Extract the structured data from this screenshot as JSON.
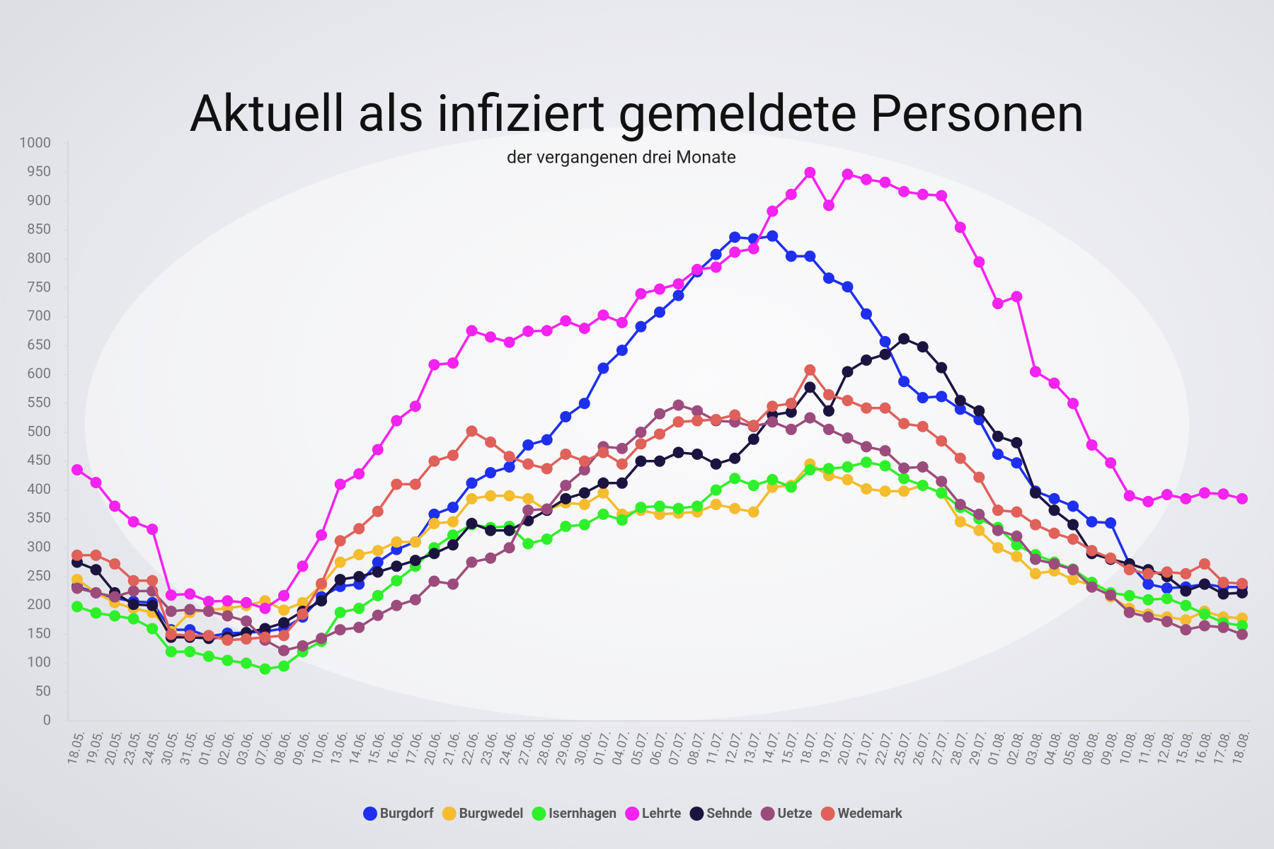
{
  "chart_data": {
    "type": "line",
    "title": "Aktuell als infiziert gemeldete Personen",
    "subtitle": "der vergangenen drei Monate",
    "categories": [
      "18.05.",
      "19.05.",
      "20.05.",
      "23.05.",
      "24.05.",
      "30.05.",
      "31.05.",
      "01.06.",
      "02.06.",
      "03.06.",
      "07.06.",
      "08.06.",
      "09.06.",
      "10.06.",
      "13.06.",
      "14.06.",
      "15.06.",
      "16.06.",
      "17.06.",
      "20.06.",
      "21.06.",
      "22.06.",
      "23.06.",
      "24.06.",
      "27.06.",
      "28.06.",
      "29.06.",
      "30.06.",
      "01.07.",
      "04.07.",
      "05.07.",
      "06.07.",
      "07.07.",
      "08.07.",
      "11.07.",
      "12.07.",
      "13.07.",
      "14.07.",
      "15.07.",
      "18.07.",
      "19.07.",
      "20.07.",
      "21.07.",
      "22.07.",
      "25.07.",
      "26.07.",
      "27.07.",
      "28.07.",
      "29.07.",
      "01.08.",
      "02.08.",
      "03.08.",
      "04.08.",
      "05.08.",
      "08.08.",
      "09.08.",
      "10.08.",
      "11.08.",
      "12.08.",
      "15.08.",
      "16.08.",
      "17.08.",
      "18.08."
    ],
    "series": [
      {
        "name": "Burgdorf",
        "color": "#1f2ff0",
        "values": [
          233,
          222,
          213,
          207,
          205,
          158,
          158,
          146,
          152,
          153,
          155,
          160,
          180,
          215,
          233,
          237,
          275,
          297,
          310,
          358,
          370,
          412,
          430,
          440,
          478,
          487,
          527,
          550,
          611,
          642,
          683,
          708,
          737,
          778,
          808,
          838,
          835,
          840,
          805,
          805,
          767,
          752,
          705,
          657,
          588,
          560,
          562,
          540,
          522,
          462,
          447,
          398,
          385,
          372,
          345,
          343,
          272,
          237,
          230,
          232,
          237,
          232,
          232
        ]
      },
      {
        "name": "Burgwedel",
        "color": "#f4bc2e",
        "values": [
          245,
          222,
          205,
          195,
          188,
          155,
          188,
          192,
          195,
          200,
          208,
          192,
          205,
          235,
          275,
          288,
          295,
          310,
          310,
          342,
          345,
          385,
          390,
          390,
          385,
          365,
          378,
          375,
          395,
          358,
          365,
          358,
          360,
          362,
          375,
          368,
          362,
          405,
          408,
          445,
          425,
          418,
          402,
          398,
          398,
          408,
          395,
          345,
          330,
          300,
          285,
          255,
          260,
          245,
          235,
          215,
          195,
          185,
          180,
          175,
          190,
          180,
          178
        ]
      },
      {
        "name": "Isernhagen",
        "color": "#2ef02a",
        "values": [
          198,
          187,
          182,
          177,
          160,
          120,
          120,
          112,
          105,
          100,
          90,
          95,
          120,
          138,
          188,
          195,
          217,
          243,
          268,
          300,
          322,
          340,
          335,
          337,
          307,
          315,
          337,
          340,
          358,
          348,
          370,
          372,
          368,
          372,
          400,
          420,
          408,
          418,
          405,
          435,
          437,
          440,
          448,
          442,
          420,
          408,
          395,
          370,
          350,
          335,
          305,
          288,
          275,
          263,
          240,
          222,
          217,
          210,
          212,
          200,
          185,
          170,
          165
        ]
      },
      {
        "name": "Lehrte",
        "color": "#f522f0",
        "values": [
          435,
          413,
          372,
          345,
          332,
          218,
          220,
          207,
          208,
          205,
          195,
          217,
          268,
          322,
          410,
          428,
          470,
          520,
          545,
          617,
          620,
          676,
          665,
          656,
          675,
          676,
          693,
          680,
          703,
          690,
          740,
          748,
          757,
          782,
          786,
          812,
          818,
          883,
          912,
          950,
          893,
          947,
          938,
          933,
          917,
          912,
          910,
          855,
          795,
          723,
          735,
          605,
          585,
          550,
          478,
          447,
          390,
          380,
          392,
          385,
          395,
          393,
          385
        ]
      },
      {
        "name": "Sehnde",
        "color": "#1c1440",
        "values": [
          275,
          262,
          222,
          202,
          200,
          145,
          145,
          143,
          145,
          153,
          160,
          170,
          190,
          208,
          245,
          250,
          258,
          268,
          278,
          290,
          305,
          342,
          330,
          330,
          347,
          365,
          385,
          395,
          412,
          412,
          450,
          450,
          465,
          462,
          445,
          455,
          488,
          530,
          535,
          578,
          537,
          605,
          625,
          635,
          662,
          648,
          612,
          555,
          537,
          493,
          482,
          395,
          365,
          340,
          290,
          280,
          272,
          262,
          250,
          225,
          237,
          220,
          222
        ]
      },
      {
        "name": "Uetze",
        "color": "#9c4c7c",
        "values": [
          230,
          222,
          215,
          225,
          225,
          190,
          193,
          190,
          182,
          173,
          140,
          122,
          130,
          143,
          158,
          162,
          183,
          200,
          210,
          242,
          237,
          275,
          282,
          300,
          365,
          367,
          408,
          435,
          475,
          472,
          500,
          532,
          547,
          537,
          520,
          518,
          510,
          518,
          505,
          525,
          505,
          490,
          475,
          468,
          438,
          440,
          415,
          375,
          358,
          330,
          320,
          280,
          272,
          262,
          232,
          218,
          188,
          180,
          172,
          158,
          165,
          162,
          150
        ]
      },
      {
        "name": "Wedemark",
        "color": "#e0605a",
        "values": [
          287,
          287,
          272,
          243,
          243,
          150,
          148,
          148,
          140,
          142,
          145,
          148,
          185,
          238,
          312,
          333,
          363,
          410,
          410,
          450,
          460,
          502,
          483,
          458,
          445,
          437,
          462,
          450,
          465,
          445,
          480,
          497,
          518,
          520,
          522,
          530,
          512,
          545,
          550,
          608,
          565,
          555,
          542,
          542,
          515,
          510,
          485,
          455,
          422,
          365,
          362,
          340,
          325,
          315,
          295,
          282,
          262,
          255,
          258,
          255,
          272,
          240,
          238
        ]
      }
    ],
    "ylim": [
      0,
      1000
    ],
    "yticks": [
      0,
      50,
      100,
      150,
      200,
      250,
      300,
      350,
      400,
      450,
      500,
      550,
      600,
      650,
      700,
      750,
      800,
      850,
      900,
      950,
      1000
    ],
    "grid": false,
    "legend": "bottom"
  }
}
